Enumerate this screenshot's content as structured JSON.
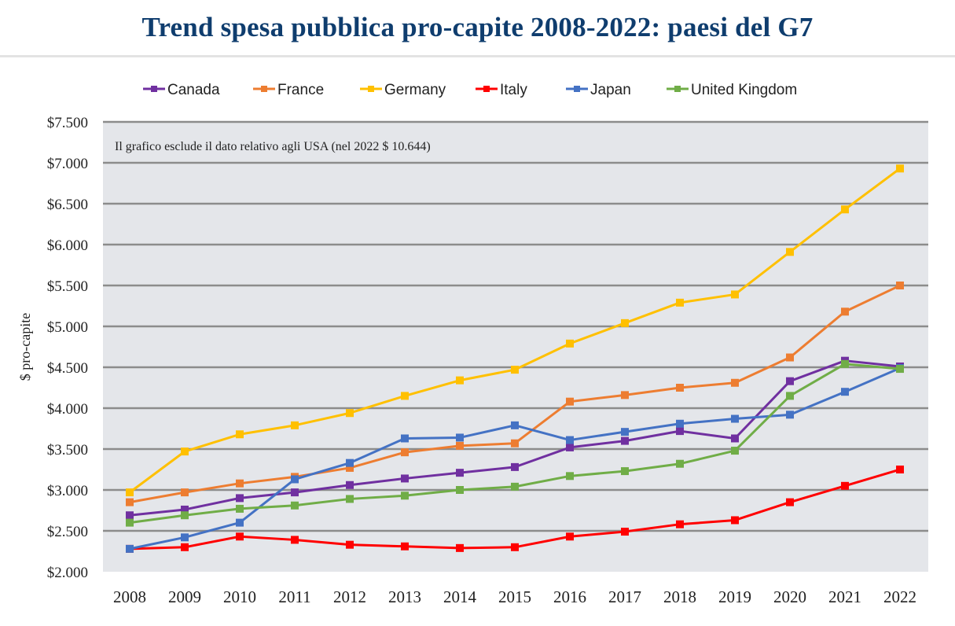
{
  "header": {
    "title": "Trend spesa pubblica pro-capite 2008-2022: paesi del G7"
  },
  "chart_data": {
    "type": "line",
    "title": "Trend spesa pubblica pro-capite 2008-2022: paesi del G7",
    "xlabel": "",
    "ylabel": "$ pro-capite",
    "ylim": [
      2000,
      7500
    ],
    "yticks": [
      2000,
      2500,
      3000,
      3500,
      4000,
      4500,
      5000,
      5500,
      6000,
      6500,
      7000,
      7500
    ],
    "ytick_labels": [
      "$2.000",
      "$2.500",
      "$3.000",
      "$3.500",
      "$4.000",
      "$4.500",
      "$5.000",
      "$5.500",
      "$6.000",
      "$6.500",
      "$7.000",
      "$7.500"
    ],
    "grid": "horizontal",
    "legend": "top",
    "annotation": "Il grafico esclude il dato relativo agli USA (nel 2022 $ 10.644)",
    "categories": [
      "2008",
      "2009",
      "2010",
      "2011",
      "2012",
      "2013",
      "2014",
      "2015",
      "2016",
      "2017",
      "2018",
      "2019",
      "2020",
      "2021",
      "2022"
    ],
    "series": [
      {
        "name": "Canada",
        "color": "#7030a0",
        "values": [
          2690,
          2760,
          2900,
          2970,
          3060,
          3140,
          3210,
          3280,
          3520,
          3600,
          3720,
          3630,
          4330,
          4580,
          4510
        ]
      },
      {
        "name": "France",
        "color": "#ed7d31",
        "values": [
          2850,
          2970,
          3080,
          3160,
          3270,
          3460,
          3540,
          3570,
          4080,
          4160,
          4250,
          4310,
          4620,
          5180,
          5500
        ]
      },
      {
        "name": "Germany",
        "color": "#ffc000",
        "values": [
          2970,
          3470,
          3680,
          3790,
          3940,
          4150,
          4340,
          4470,
          4790,
          5040,
          5290,
          5390,
          5910,
          6430,
          6930
        ]
      },
      {
        "name": "Italy",
        "color": "#ff0000",
        "values": [
          2280,
          2300,
          2430,
          2390,
          2330,
          2310,
          2290,
          2300,
          2430,
          2490,
          2580,
          2630,
          2850,
          3050,
          3250
        ]
      },
      {
        "name": "Japan",
        "color": "#4472c4",
        "values": [
          2280,
          2420,
          2600,
          3130,
          3330,
          3630,
          3640,
          3790,
          3610,
          3710,
          3810,
          3870,
          3920,
          4200,
          4490
        ]
      },
      {
        "name": "United Kingdom",
        "color": "#70ad47",
        "values": [
          2600,
          2690,
          2770,
          2810,
          2890,
          2930,
          3000,
          3040,
          3170,
          3230,
          3320,
          3480,
          4150,
          4540,
          4480
        ]
      }
    ]
  }
}
